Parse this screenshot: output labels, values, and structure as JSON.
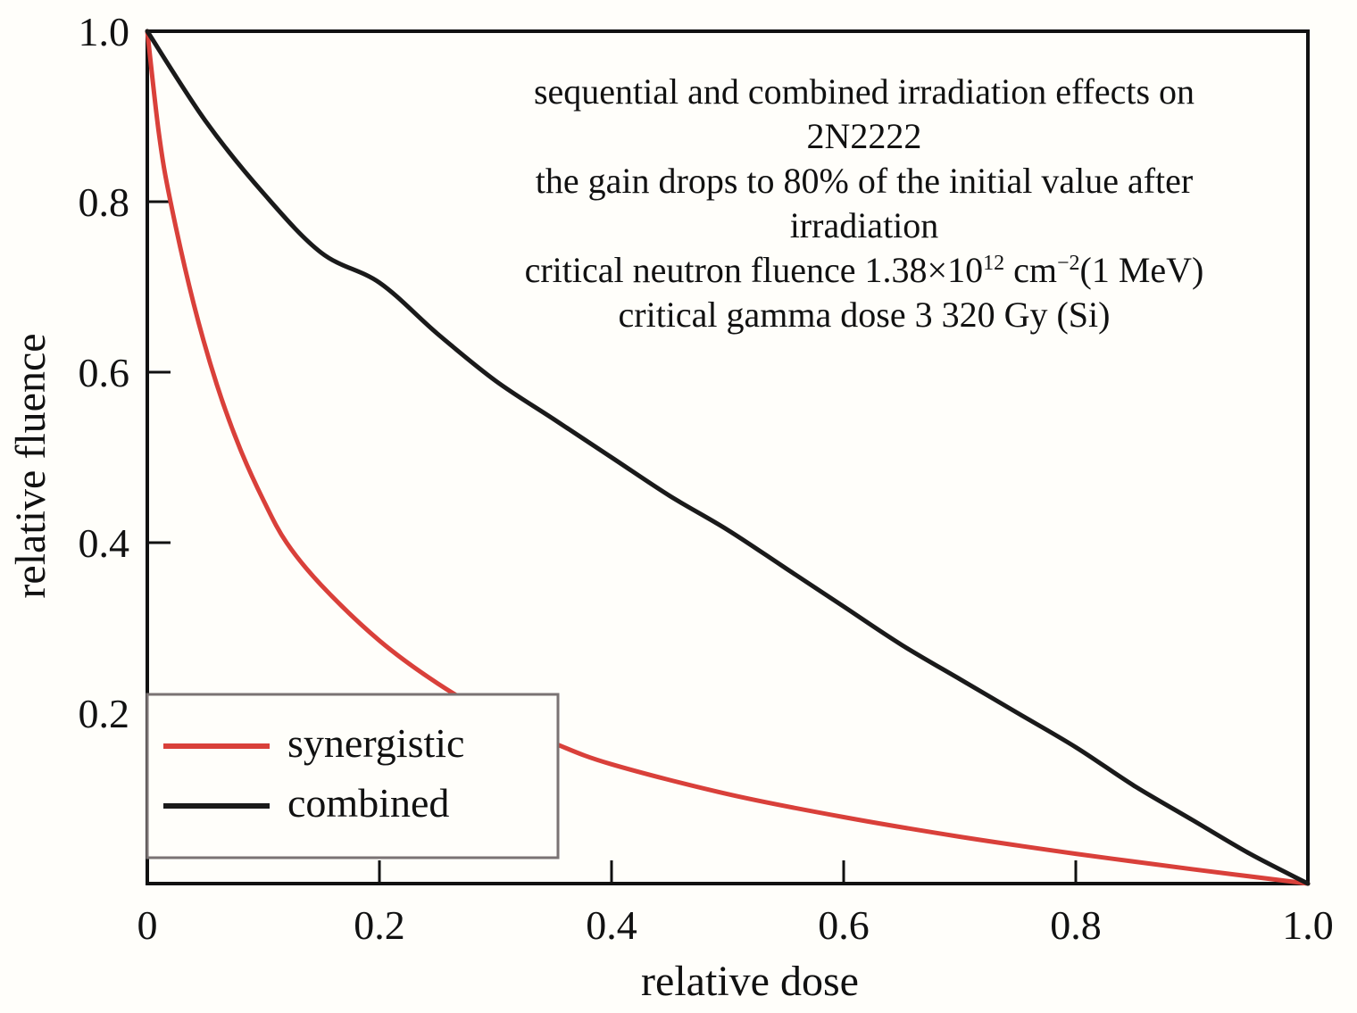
{
  "chart_data": {
    "type": "line",
    "xlabel": "relative dose",
    "ylabel": "relative fluence",
    "xlim": [
      0,
      1.0
    ],
    "ylim": [
      0,
      1.0
    ],
    "x_ticks": [
      {
        "value": 0,
        "label": "0"
      },
      {
        "value": 0.2,
        "label": "0.2"
      },
      {
        "value": 0.4,
        "label": "0.4"
      },
      {
        "value": 0.6,
        "label": "0.6"
      },
      {
        "value": 0.8,
        "label": "0.8"
      },
      {
        "value": 1.0,
        "label": "1.0"
      }
    ],
    "y_ticks": [
      {
        "value": 0.2,
        "label": "0.2"
      },
      {
        "value": 0.4,
        "label": "0.4"
      },
      {
        "value": 0.6,
        "label": "0.6"
      },
      {
        "value": 0.8,
        "label": "0.8"
      },
      {
        "value": 1.0,
        "label": "1.0"
      }
    ],
    "grid": false,
    "legend_position": "bottom-left",
    "annotation_lines": [
      {
        "text": "sequential and combined irradiation effects on"
      },
      {
        "text": "2N2222"
      },
      {
        "text": "the gain drops to 80% of the initial value after"
      },
      {
        "text": "irradiation"
      },
      {
        "parts": [
          {
            "text": "critical neutron fluence 1.38×10"
          },
          {
            "text": "12",
            "sup": true
          },
          {
            "text": " cm"
          },
          {
            "text": "−2",
            "sup": true
          },
          {
            "text": "(1 MeV)"
          }
        ]
      },
      {
        "text": "critical gamma dose 3 320 Gy (Si)"
      }
    ],
    "series": [
      {
        "name": "synergistic",
        "color": "#d9403a",
        "x": [
          0,
          0.01,
          0.02,
          0.04,
          0.06,
          0.08,
          0.1,
          0.12,
          0.15,
          0.2,
          0.25,
          0.3,
          0.35,
          0.4,
          0.5,
          0.6,
          0.7,
          0.8,
          0.9,
          1.0
        ],
        "y": [
          1.0,
          0.88,
          0.8,
          0.68,
          0.585,
          0.51,
          0.45,
          0.4,
          0.35,
          0.285,
          0.235,
          0.195,
          0.165,
          0.14,
          0.105,
          0.078,
          0.055,
          0.035,
          0.017,
          0.0
        ]
      },
      {
        "name": "combined",
        "color": "#1a1a1a",
        "x": [
          0,
          0.05,
          0.1,
          0.15,
          0.2,
          0.25,
          0.3,
          0.35,
          0.4,
          0.45,
          0.5,
          0.55,
          0.6,
          0.65,
          0.7,
          0.75,
          0.8,
          0.85,
          0.9,
          0.95,
          1.0
        ],
        "y": [
          1.0,
          0.895,
          0.81,
          0.74,
          0.705,
          0.645,
          0.59,
          0.545,
          0.5,
          0.455,
          0.415,
          0.37,
          0.325,
          0.28,
          0.24,
          0.2,
          0.16,
          0.115,
          0.075,
          0.035,
          0.0
        ]
      }
    ]
  }
}
